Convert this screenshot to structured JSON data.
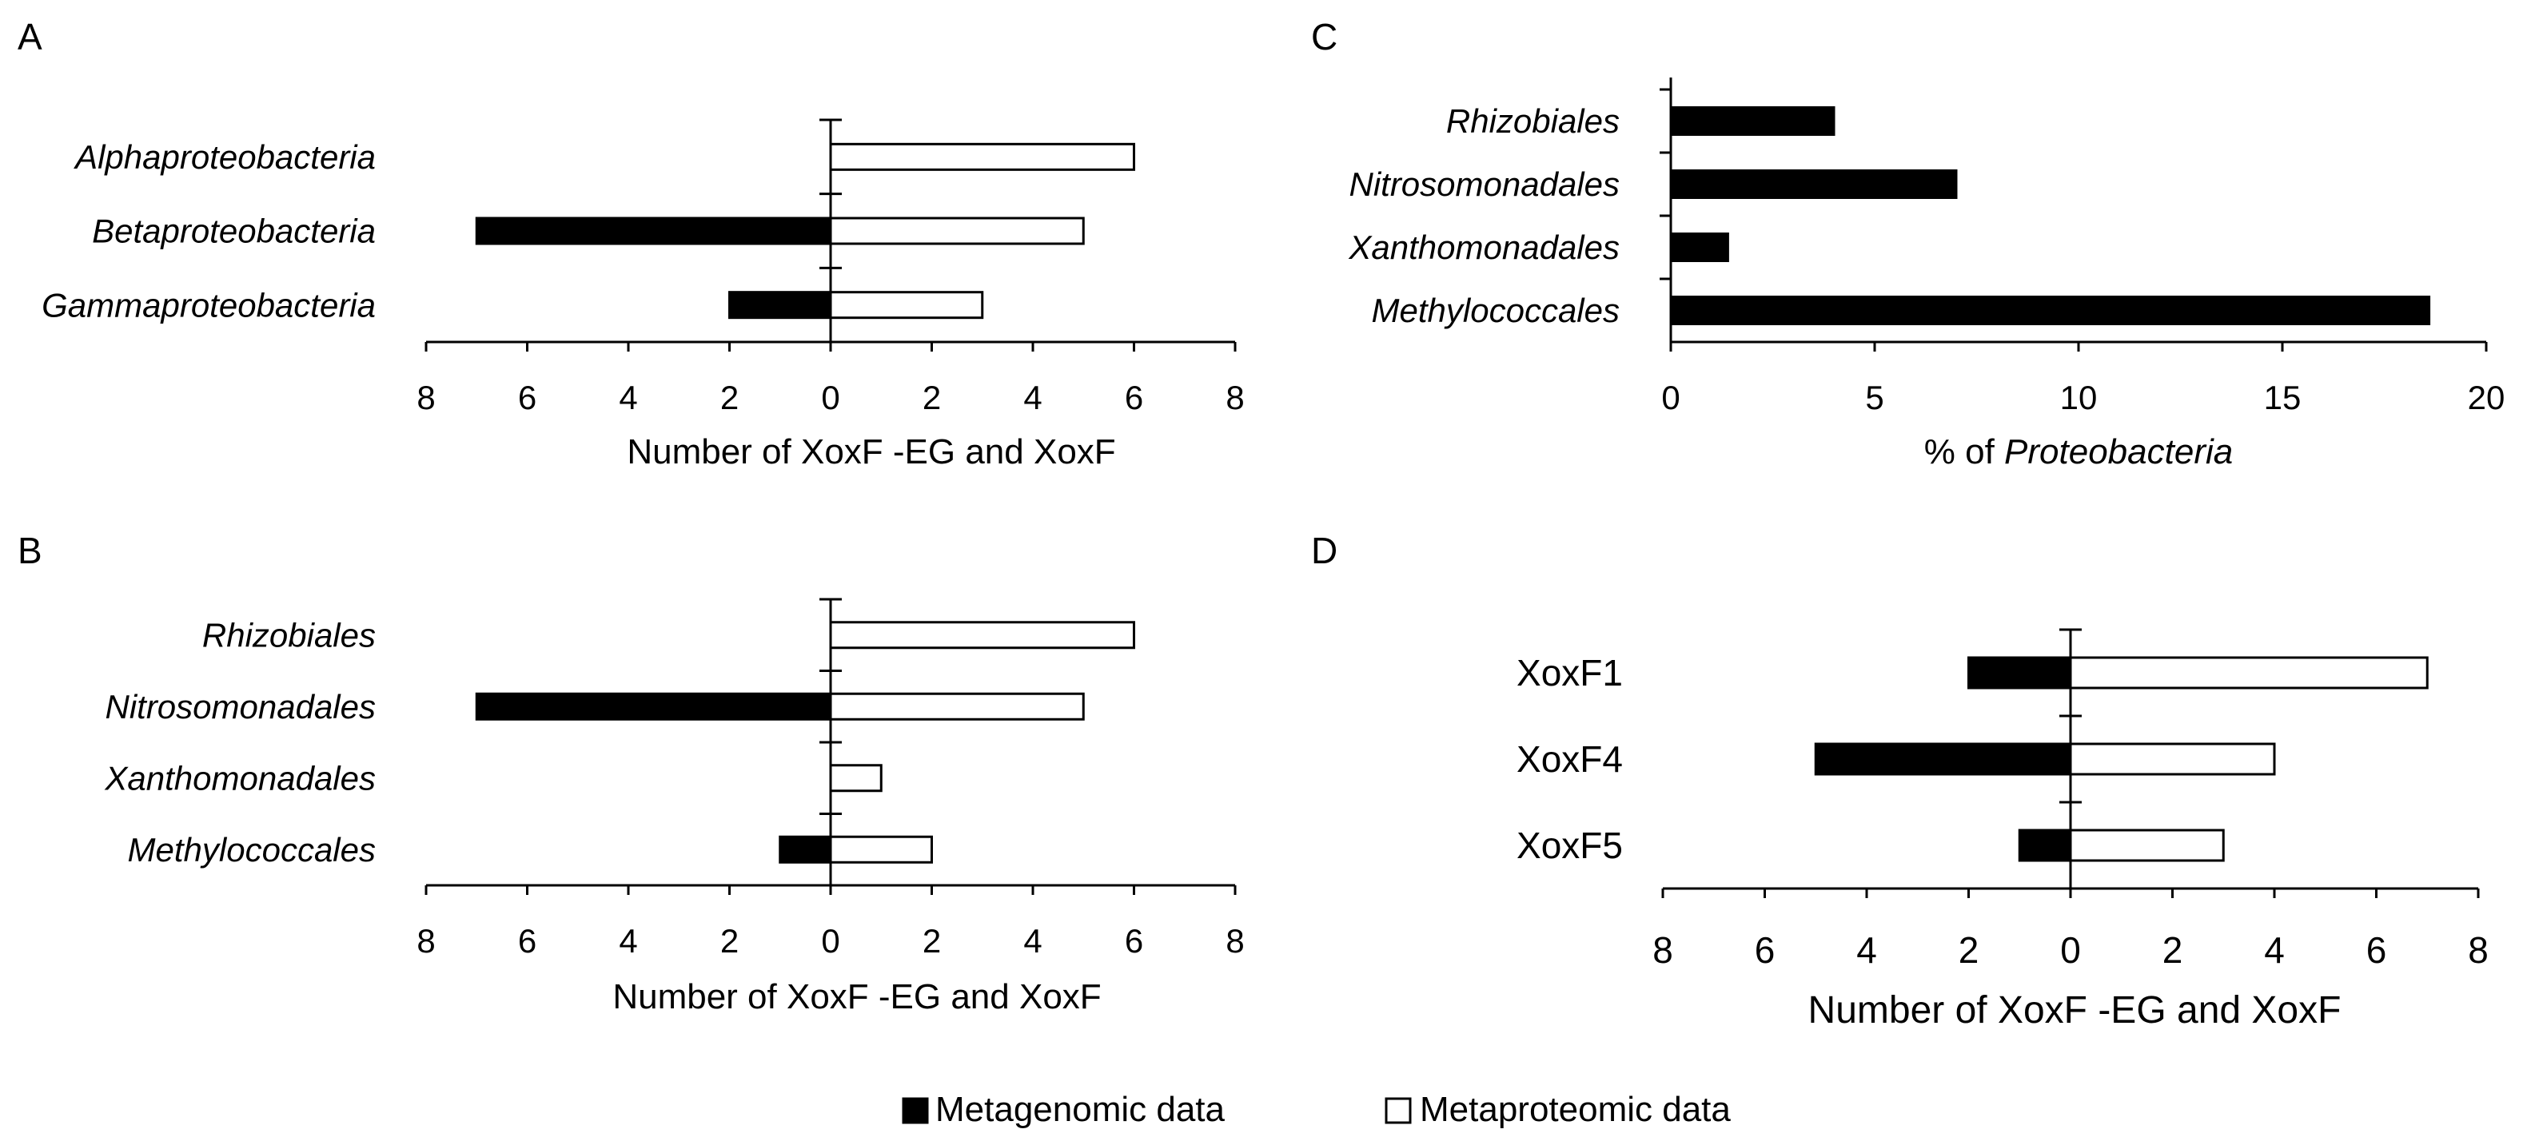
{
  "colors": {
    "metagenomic": "#000000",
    "metaproteomic": "#ffffff",
    "outline": "#000000"
  },
  "legend": {
    "metagenomic": "Metagenomic data",
    "metaproteomic": "Metaproteomic data"
  },
  "chart_data": [
    {
      "panel": "A",
      "type": "bar",
      "orientation": "horizontal",
      "mirrored": true,
      "categories": [
        "Alphaproteobacteria",
        "Betaproteobacteria",
        "Gammaproteobacteria"
      ],
      "category_style": "italic",
      "series": [
        {
          "name": "Metagenomic data",
          "key": "metagenomic",
          "side": "left",
          "values": [
            0,
            7,
            2
          ]
        },
        {
          "name": "Metaproteomic data",
          "key": "metaproteomic",
          "side": "right",
          "values": [
            6,
            5,
            3
          ]
        }
      ],
      "xlim": [
        -8,
        8
      ],
      "xticks": [
        "8",
        "6",
        "4",
        "2",
        "0",
        "2",
        "4",
        "6",
        "8"
      ],
      "xlabel": "Number of XoxF -EG and XoxF",
      "xlabel_italic_part": ""
    },
    {
      "panel": "B",
      "type": "bar",
      "orientation": "horizontal",
      "mirrored": true,
      "categories": [
        "Rhizobiales",
        "Nitrosomonadales",
        "Xanthomonadales",
        "Methylococcales"
      ],
      "category_style": "italic",
      "series": [
        {
          "name": "Metagenomic data",
          "key": "metagenomic",
          "side": "left",
          "values": [
            0,
            7,
            0,
            1
          ]
        },
        {
          "name": "Metaproteomic data",
          "key": "metaproteomic",
          "side": "right",
          "values": [
            6,
            5,
            1,
            2
          ]
        }
      ],
      "xlim": [
        -8,
        8
      ],
      "xticks": [
        "8",
        "6",
        "4",
        "2",
        "0",
        "2",
        "4",
        "6",
        "8"
      ],
      "xlabel": "Number of XoxF -EG and XoxF",
      "xlabel_italic_part": ""
    },
    {
      "panel": "C",
      "type": "bar",
      "orientation": "horizontal",
      "mirrored": false,
      "categories": [
        "Rhizobiales",
        "Nitrosomonadales",
        "Xanthomonadales",
        "Methylococcales"
      ],
      "category_style": "italic",
      "series": [
        {
          "name": "Metagenomic data",
          "key": "metagenomic",
          "side": "right",
          "values": [
            4,
            7,
            1.4,
            18.6
          ]
        }
      ],
      "xlim": [
        0,
        20
      ],
      "xticks": [
        "0",
        "5",
        "10",
        "15",
        "20"
      ],
      "xlabel": "% of ",
      "xlabel_italic_part": "Proteobacteria"
    },
    {
      "panel": "D",
      "type": "bar",
      "orientation": "horizontal",
      "mirrored": true,
      "categories": [
        "XoxF1",
        "XoxF4",
        "XoxF5"
      ],
      "category_style": "normal",
      "series": [
        {
          "name": "Metagenomic data",
          "key": "metagenomic",
          "side": "left",
          "values": [
            2,
            5,
            1
          ]
        },
        {
          "name": "Metaproteomic data",
          "key": "metaproteomic",
          "side": "right",
          "values": [
            7,
            4,
            3
          ]
        }
      ],
      "xlim": [
        -8,
        8
      ],
      "xticks": [
        "8",
        "6",
        "4",
        "2",
        "0",
        "2",
        "4",
        "6",
        "8"
      ],
      "xlabel": "Number of XoxF -EG and XoxF",
      "xlabel_italic_part": ""
    }
  ]
}
